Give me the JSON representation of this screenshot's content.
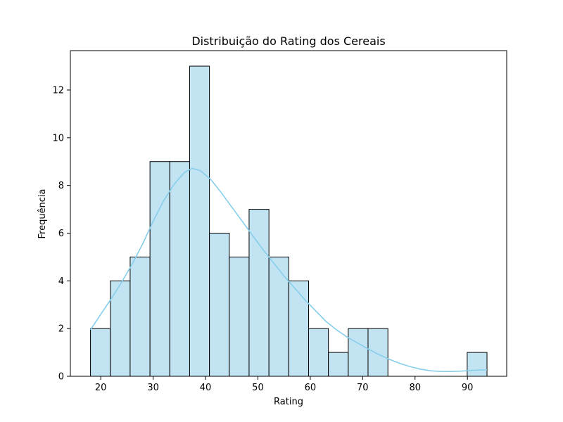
{
  "chart_data": {
    "type": "bar",
    "subtype": "histogram",
    "title": "Distribuição do Rating dos Cereais",
    "xlabel": "Rating",
    "ylabel": "Frequência",
    "xlim": [
      14.2,
      97.5
    ],
    "ylim": [
      0,
      13.65
    ],
    "xticks": [
      20,
      30,
      40,
      50,
      60,
      70,
      80,
      90
    ],
    "yticks": [
      0,
      2,
      4,
      6,
      8,
      10,
      12
    ],
    "grid": false,
    "legend": "none",
    "bar_fill": "#c2e4f2",
    "bar_edge": "#000000",
    "kde_color": "#87ceeb",
    "bins": [
      {
        "x0": 18.04,
        "x1": 21.83,
        "count": 2
      },
      {
        "x0": 21.83,
        "x1": 25.61,
        "count": 4
      },
      {
        "x0": 25.61,
        "x1": 29.4,
        "count": 5
      },
      {
        "x0": 29.4,
        "x1": 33.18,
        "count": 9
      },
      {
        "x0": 33.18,
        "x1": 36.97,
        "count": 9
      },
      {
        "x0": 36.97,
        "x1": 40.75,
        "count": 13
      },
      {
        "x0": 40.75,
        "x1": 44.54,
        "count": 6
      },
      {
        "x0": 44.54,
        "x1": 48.32,
        "count": 5
      },
      {
        "x0": 48.32,
        "x1": 52.11,
        "count": 7
      },
      {
        "x0": 52.11,
        "x1": 55.89,
        "count": 5
      },
      {
        "x0": 55.89,
        "x1": 59.68,
        "count": 4
      },
      {
        "x0": 59.68,
        "x1": 63.46,
        "count": 2
      },
      {
        "x0": 63.46,
        "x1": 67.25,
        "count": 1
      },
      {
        "x0": 67.25,
        "x1": 71.03,
        "count": 2
      },
      {
        "x0": 71.03,
        "x1": 74.82,
        "count": 2
      },
      {
        "x0": 74.82,
        "x1": 78.6,
        "count": 0
      },
      {
        "x0": 78.6,
        "x1": 82.39,
        "count": 0
      },
      {
        "x0": 82.39,
        "x1": 86.17,
        "count": 0
      },
      {
        "x0": 86.17,
        "x1": 89.96,
        "count": 0
      },
      {
        "x0": 89.96,
        "x1": 93.74,
        "count": 1
      }
    ],
    "kde": {
      "x": [
        18.04,
        20,
        22,
        24,
        26,
        28,
        30,
        32,
        34,
        36,
        37.5,
        39,
        41,
        43,
        45,
        47,
        49,
        51,
        53,
        55,
        57,
        59,
        61,
        63,
        65,
        67,
        69,
        71,
        73,
        75,
        77,
        79,
        81,
        83,
        85,
        87,
        89,
        91,
        93.74
      ],
      "y": [
        1.95,
        2.6,
        3.25,
        3.95,
        4.7,
        5.55,
        6.5,
        7.35,
        8.05,
        8.55,
        8.72,
        8.62,
        8.25,
        7.7,
        7.1,
        6.5,
        5.9,
        5.3,
        4.75,
        4.2,
        3.7,
        3.2,
        2.75,
        2.3,
        1.95,
        1.65,
        1.4,
        1.15,
        0.92,
        0.72,
        0.55,
        0.41,
        0.3,
        0.23,
        0.2,
        0.2,
        0.22,
        0.25,
        0.27
      ]
    }
  }
}
